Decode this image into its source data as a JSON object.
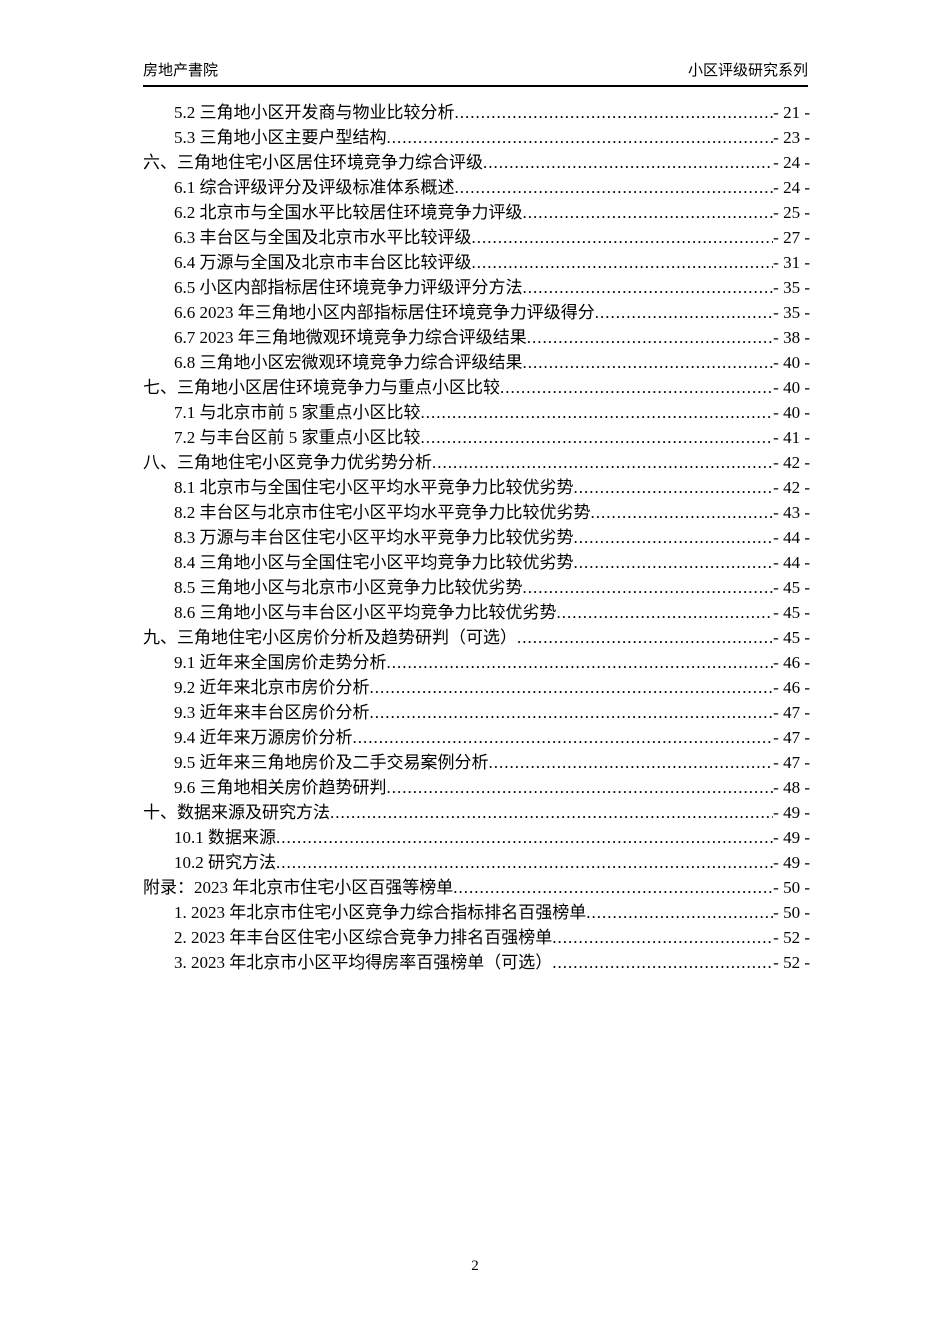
{
  "header": {
    "left": "房地产書院",
    "right": "小区评级研究系列"
  },
  "toc": {
    "entries": [
      {
        "label": "5.2 三角地小区开发商与物业比较分析",
        "page": "- 21 -",
        "level": "sub"
      },
      {
        "label": "5.3 三角地小区主要户型结构",
        "page": "- 23 -",
        "level": "sub"
      },
      {
        "label": "六、三角地住宅小区居住环境竞争力综合评级",
        "page": "- 24 -",
        "level": "chapter"
      },
      {
        "label": "6.1 综合评级评分及评级标准体系概述",
        "page": "- 24 -",
        "level": "sub"
      },
      {
        "label": "6.2 北京市与全国水平比较居住环境竞争力评级",
        "page": "- 25 -",
        "level": "sub"
      },
      {
        "label": "6.3 丰台区与全国及北京市水平比较评级",
        "page": "- 27 -",
        "level": "sub"
      },
      {
        "label": "6.4 万源与全国及北京市丰台区比较评级",
        "page": "- 31 -",
        "level": "sub"
      },
      {
        "label": "6.5 小区内部指标居住环境竞争力评级评分方法",
        "page": "- 35 -",
        "level": "sub"
      },
      {
        "label": "6.6 2023 年三角地小区内部指标居住环境竞争力评级得分",
        "page": "- 35 -",
        "level": "sub"
      },
      {
        "label": "6.7 2023 年三角地微观环境竞争力综合评级结果",
        "page": "- 38 -",
        "level": "sub"
      },
      {
        "label": "6.8 三角地小区宏微观环境竞争力综合评级结果",
        "page": "- 40 -",
        "level": "sub"
      },
      {
        "label": "七、三角地小区居住环境竞争力与重点小区比较",
        "page": "- 40 -",
        "level": "chapter"
      },
      {
        "label": "7.1 与北京市前 5 家重点小区比较",
        "page": "- 40 -",
        "level": "sub"
      },
      {
        "label": "7.2 与丰台区前 5 家重点小区比较",
        "page": "- 41 -",
        "level": "sub"
      },
      {
        "label": "八、三角地住宅小区竞争力优劣势分析",
        "page": "- 42 -",
        "level": "chapter"
      },
      {
        "label": "8.1 北京市与全国住宅小区平均水平竞争力比较优劣势",
        "page": "- 42 -",
        "level": "sub"
      },
      {
        "label": "8.2 丰台区与北京市住宅小区平均水平竞争力比较优劣势",
        "page": "- 43 -",
        "level": "sub"
      },
      {
        "label": "8.3 万源与丰台区住宅小区平均水平竞争力比较优劣势",
        "page": "- 44 -",
        "level": "sub"
      },
      {
        "label": "8.4 三角地小区与全国住宅小区平均竞争力比较优劣势",
        "page": "- 44 -",
        "level": "sub"
      },
      {
        "label": "8.5 三角地小区与北京市小区竞争力比较优劣势",
        "page": "- 45 -",
        "level": "sub"
      },
      {
        "label": "8.6 三角地小区与丰台区小区平均竞争力比较优劣势",
        "page": "- 45 -",
        "level": "sub"
      },
      {
        "label": "九、三角地住宅小区房价分析及趋势研判（可选）",
        "page": "- 45 -",
        "level": "chapter"
      },
      {
        "label": "9.1 近年来全国房价走势分析",
        "page": "- 46 -",
        "level": "sub"
      },
      {
        "label": "9.2 近年来北京市房价分析",
        "page": "- 46 -",
        "level": "sub"
      },
      {
        "label": "9.3 近年来丰台区房价分析",
        "page": "- 47 -",
        "level": "sub"
      },
      {
        "label": "9.4 近年来万源房价分析",
        "page": "- 47 -",
        "level": "sub"
      },
      {
        "label": "9.5 近年来三角地房价及二手交易案例分析",
        "page": "- 47 -",
        "level": "sub"
      },
      {
        "label": "9.6 三角地相关房价趋势研判",
        "page": "- 48 -",
        "level": "sub"
      },
      {
        "label": "十、数据来源及研究方法",
        "page": "- 49 -",
        "level": "chapter"
      },
      {
        "label": "10.1 数据来源",
        "page": "- 49 -",
        "level": "sub"
      },
      {
        "label": "10.2 研究方法",
        "page": "- 49 -",
        "level": "sub"
      },
      {
        "label": "附录：2023 年北京市住宅小区百强等榜单",
        "page": "- 50 -",
        "level": "chapter"
      },
      {
        "label": "1. 2023 年北京市住宅小区竞争力综合指标排名百强榜单",
        "page": "- 50 -",
        "level": "sub"
      },
      {
        "label": "2. 2023 年丰台区住宅小区综合竞争力排名百强榜单",
        "page": "- 52 -",
        "level": "sub"
      },
      {
        "label": "3. 2023 年北京市小区平均得房率百强榜单（可选）",
        "page": "- 52 -",
        "level": "sub"
      }
    ]
  },
  "footer": {
    "page_number": "2"
  }
}
